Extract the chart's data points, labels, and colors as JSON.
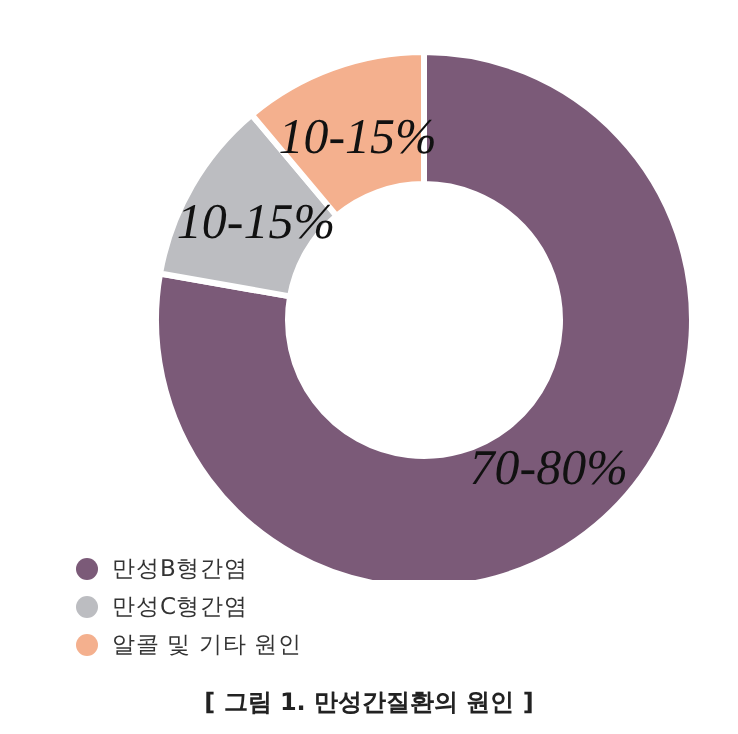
{
  "chart_data": {
    "type": "donut",
    "categories": [
      "만성B형간염",
      "만성C형간염",
      "알콜 및 기타 원인"
    ],
    "values": [
      70,
      10,
      10
    ],
    "colors": [
      "#7b5a78",
      "#bcbdc1",
      "#f4b08e"
    ],
    "value_labels": [
      "70-80%",
      "10-15%",
      "10-15%"
    ],
    "legend": "bottom left",
    "annotations": [
      "[ 그림 1.  만성간질환의 원인 ]"
    ]
  }
}
